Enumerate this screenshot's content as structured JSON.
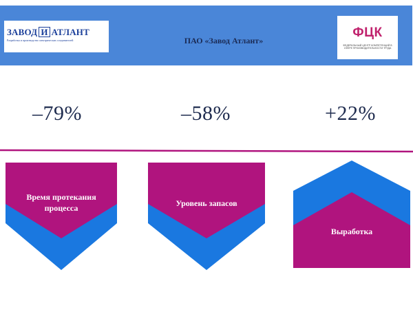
{
  "header": {
    "title": "ПАО «Завод Атлант»",
    "logo_left": {
      "brand_part1": "ЗАВОД",
      "brand_mark": "И",
      "brand_part2": "АТЛАНТ",
      "tagline": "Разработка и производство электрических соединителей"
    },
    "logo_right": {
      "name": "ФЦК",
      "subtitle": "ФЕДЕРАЛЬНЫЙ ЦЕНТР КОМПЕТЕНЦИЙ В СФЕРЕ ПРОИЗВОДИТЕЛЬНОСТИ ТРУДА"
    }
  },
  "metrics": [
    {
      "value": "–79%",
      "label": "Время протекания процесса",
      "direction": "down"
    },
    {
      "value": "–58%",
      "label": "Уровень запасов",
      "direction": "down"
    },
    {
      "value": "+22%",
      "label": "Выработка",
      "direction": "up"
    }
  ],
  "colors": {
    "header_bg": "#4a86d8",
    "magenta": "#b0147e",
    "blue": "#1a78e0",
    "metric_text": "#1f2c4f"
  }
}
